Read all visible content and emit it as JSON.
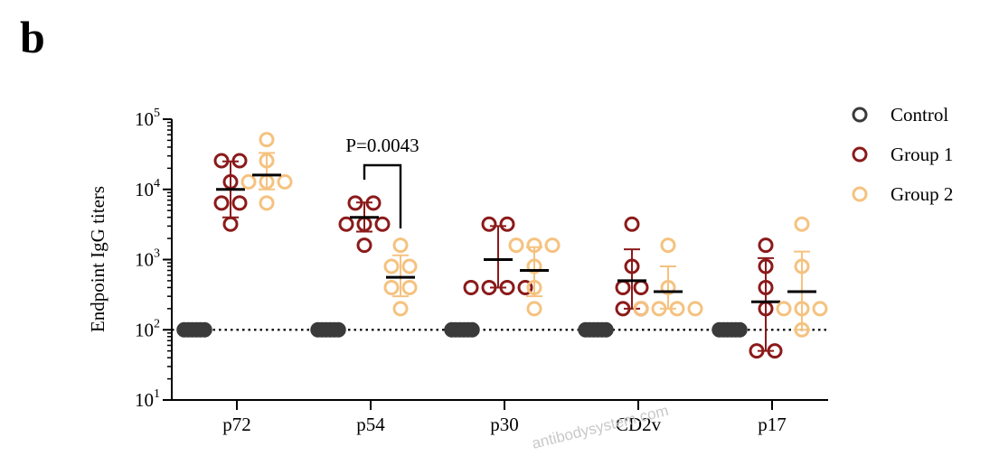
{
  "panel_label": "b",
  "watermark": "antibodysystem.com",
  "colors": {
    "control": "#3a3a3a",
    "group1": "#8b1a1a",
    "group2": "#f5c27f",
    "mean_bar": "#000000",
    "annotation": "#000000"
  },
  "chart_data": {
    "type": "scatter",
    "title": "",
    "xlabel": "",
    "ylabel": "Endpoint IgG titers",
    "yscale": "log",
    "ylim": [
      10,
      100000
    ],
    "yticks": [
      {
        "value": 10,
        "base": "10",
        "exp": "1"
      },
      {
        "value": 100,
        "base": "10",
        "exp": "2"
      },
      {
        "value": 1000,
        "base": "10",
        "exp": "3"
      },
      {
        "value": 10000,
        "base": "10",
        "exp": "4"
      },
      {
        "value": 100000,
        "base": "10",
        "exp": "5"
      }
    ],
    "categories": [
      "p72",
      "p54",
      "p30",
      "CD2v",
      "p17"
    ],
    "detection_limit": 100,
    "grid": false,
    "legend_position": "top-right",
    "series": [
      {
        "name": "Control",
        "color_key": "control",
        "points": [
          [
            100,
            100,
            100,
            100,
            100,
            100
          ],
          [
            100,
            100,
            100,
            100,
            100,
            100
          ],
          [
            100,
            100,
            100,
            100,
            100,
            100
          ],
          [
            100,
            100,
            100,
            100,
            100,
            100
          ],
          [
            100,
            100,
            100,
            100,
            100,
            100
          ]
        ],
        "mean": [
          100,
          100,
          100,
          100,
          100
        ],
        "sd_low": [
          100,
          100,
          100,
          100,
          100
        ],
        "sd_high": [
          100,
          100,
          100,
          100,
          100
        ]
      },
      {
        "name": "Group 1",
        "color_key": "group1",
        "points": [
          [
            25600,
            25600,
            12800,
            6400,
            6400,
            3200
          ],
          [
            6400,
            6400,
            3200,
            3200,
            3200,
            1600
          ],
          [
            3200,
            3200,
            400,
            400,
            400,
            400
          ],
          [
            3200,
            800,
            400,
            400,
            200,
            200
          ],
          [
            1600,
            800,
            400,
            200,
            50,
            50
          ]
        ],
        "mean": [
          10000,
          4000,
          1000,
          500,
          250
        ],
        "sd_low": [
          4000,
          2500,
          400,
          200,
          50
        ],
        "sd_high": [
          25000,
          6500,
          3000,
          1400,
          1050
        ]
      },
      {
        "name": "Group 2",
        "color_key": "group2",
        "points": [
          [
            51200,
            25600,
            12800,
            12800,
            12800,
            6400
          ],
          [
            1600,
            800,
            800,
            400,
            400,
            200
          ],
          [
            1600,
            1600,
            1600,
            800,
            400,
            200
          ],
          [
            1600,
            400,
            200,
            200,
            200,
            200
          ],
          [
            3200,
            800,
            200,
            200,
            200,
            100
          ]
        ],
        "mean": [
          16000,
          560,
          700,
          350,
          350
        ],
        "sd_low": [
          10000,
          300,
          300,
          200,
          100
        ],
        "sd_high": [
          33000,
          1150,
          1500,
          800,
          1300
        ]
      }
    ],
    "annotations": [
      {
        "text": "P=0.0043",
        "category": "p54",
        "from_series": "Group 1",
        "to_series": "Group 2"
      }
    ]
  }
}
